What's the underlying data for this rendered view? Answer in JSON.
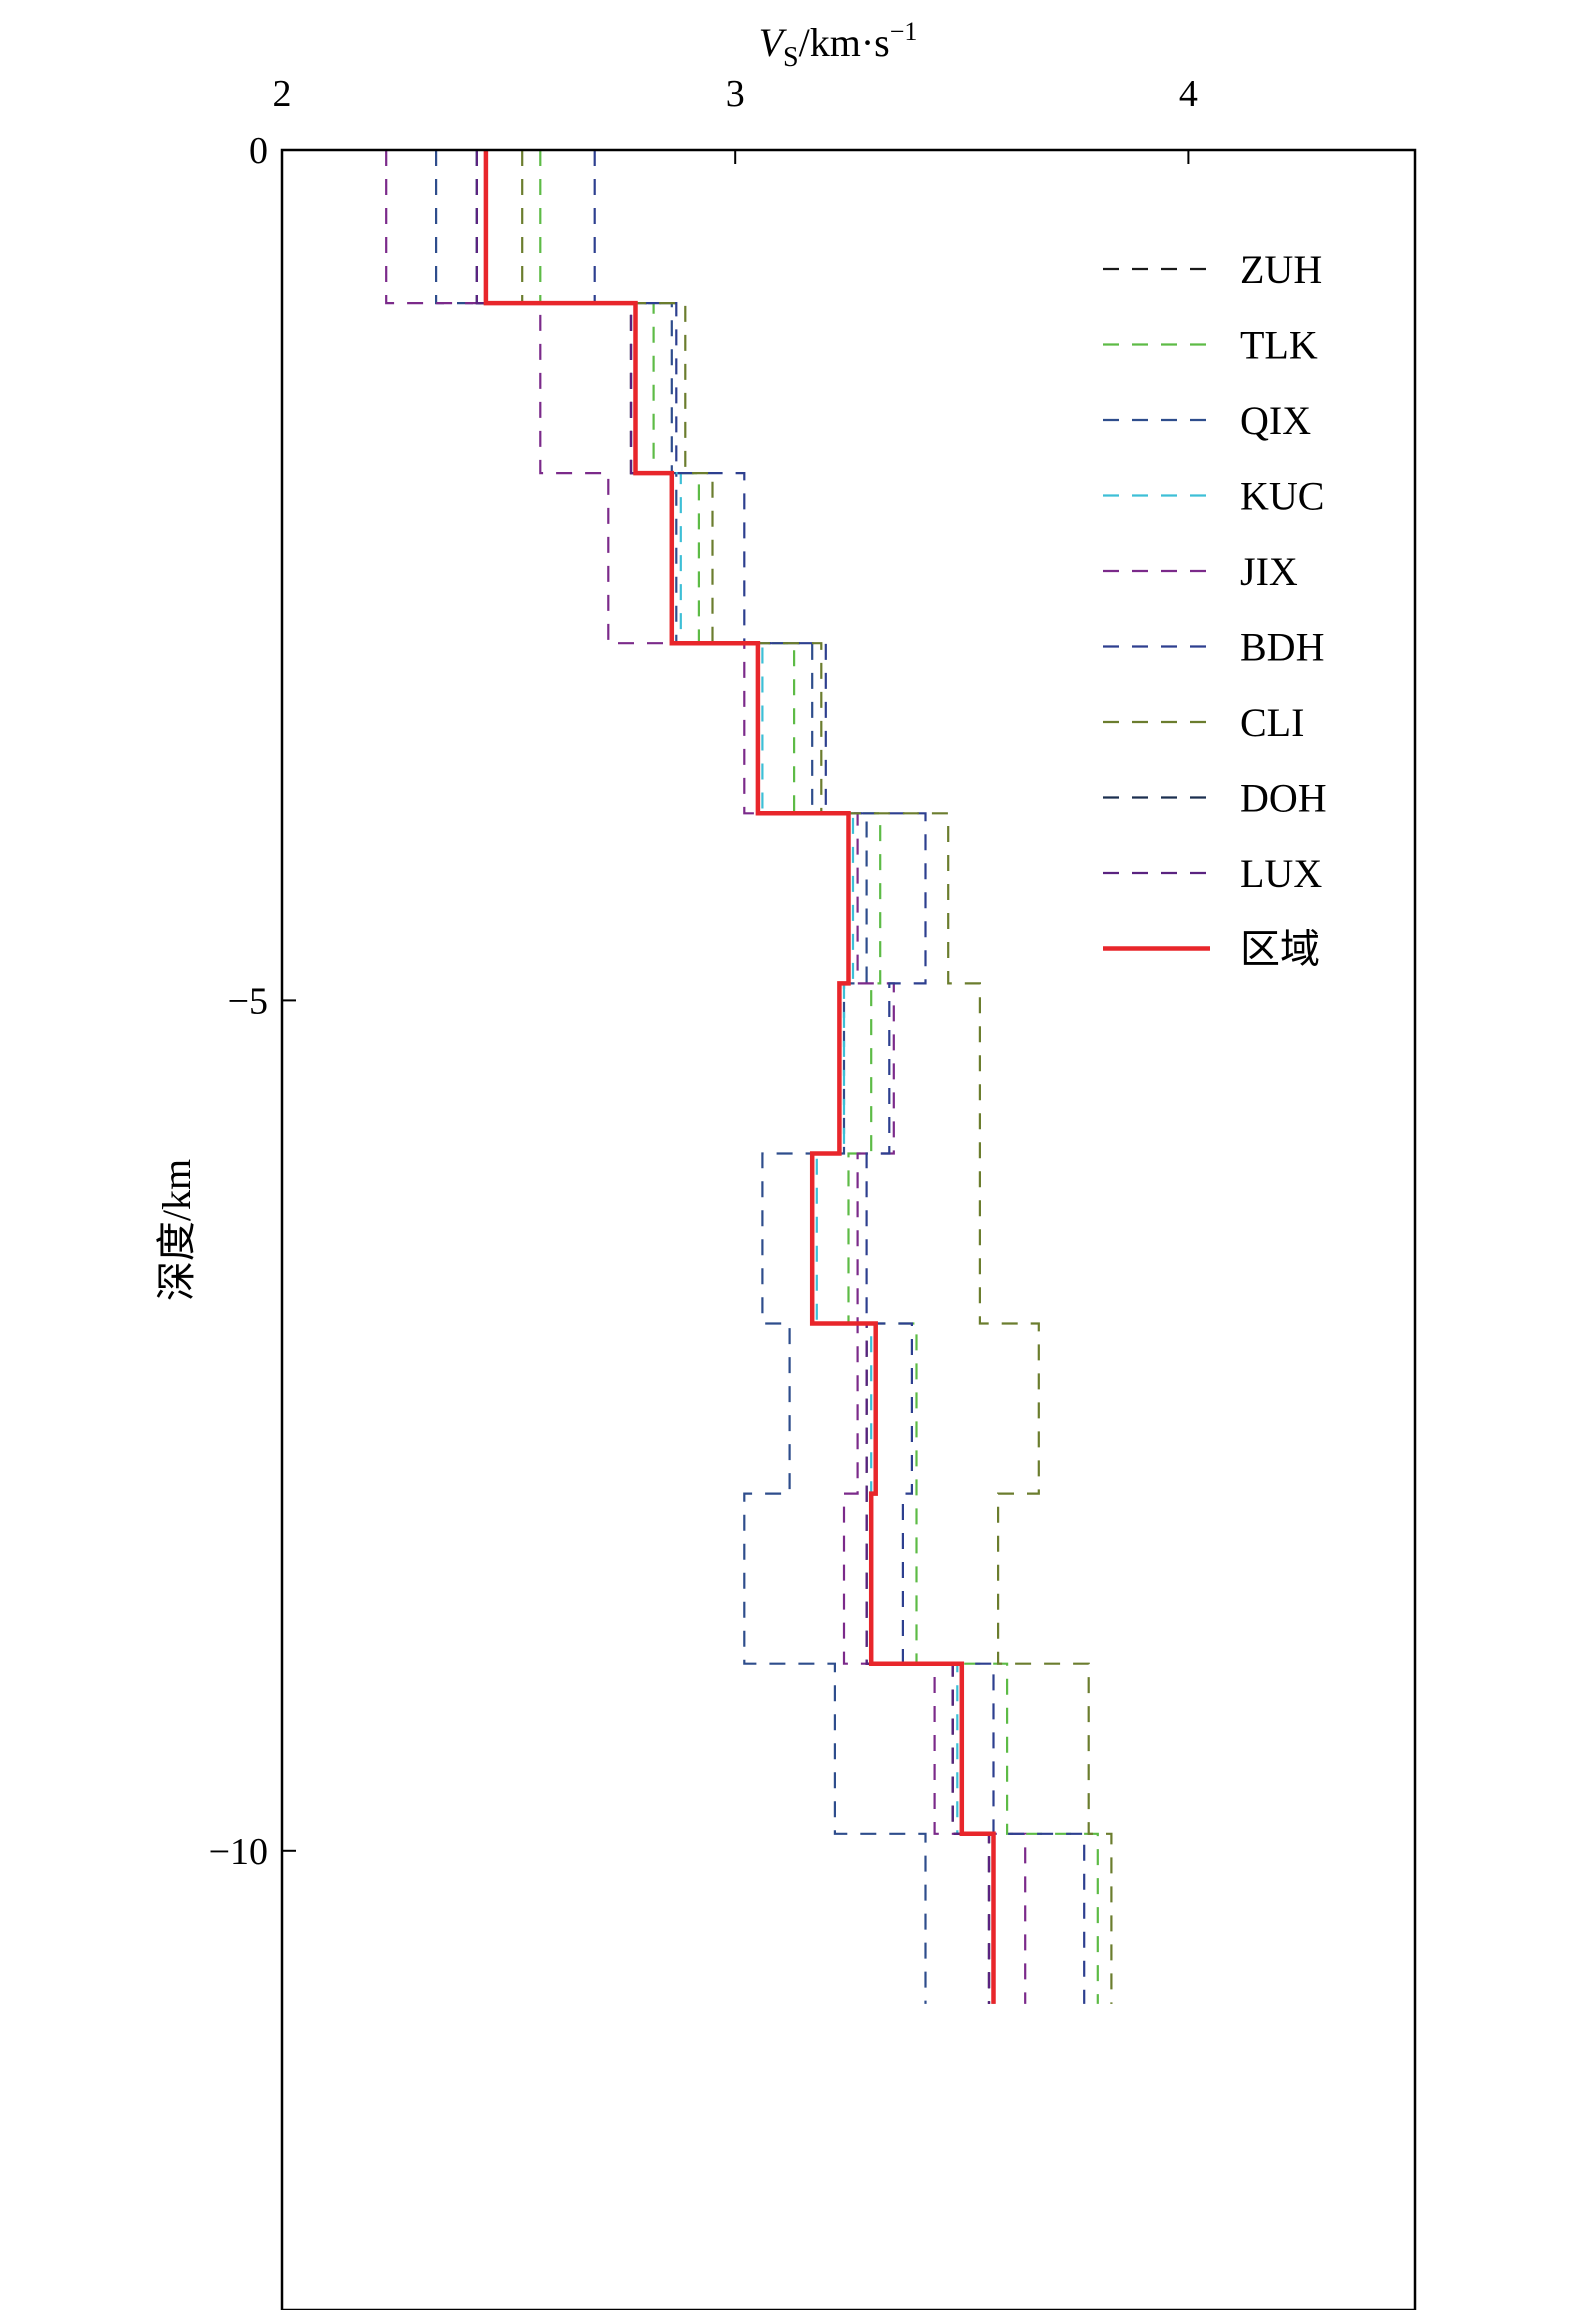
{
  "chart_data": {
    "type": "line",
    "xlabel": {
      "italic": "V",
      "sub": "S",
      "unit": "/km·s",
      "sup": "−1"
    },
    "ylabel": "深度/km",
    "xlim": [
      2,
      4.5
    ],
    "ylim": [
      0,
      -12.7
    ],
    "x_ticks": [
      2,
      3,
      4
    ],
    "x_tick_labels": [
      "2",
      "3",
      "4"
    ],
    "y_ticks": [
      0,
      -5,
      -10
    ],
    "y_tick_labels": [
      "0",
      "−5",
      "−10"
    ],
    "grid": false,
    "legend_position": "top-right",
    "layer_boundaries": [
      0,
      -0.9,
      -1.9,
      -2.9,
      -3.9,
      -4.9,
      -5.9,
      -6.9,
      -7.9,
      -8.9,
      -9.9,
      -10.9
    ],
    "series": [
      {
        "name": "ZUH",
        "style": "dashed",
        "color": "#1a1a1a",
        "values": [
          2.43,
          2.77,
          2.86,
          3.05,
          3.25,
          3.23,
          3.17,
          3.29,
          3.29,
          3.48,
          3.56
        ]
      },
      {
        "name": "TLK",
        "style": "dashed",
        "color": "#5dbb46",
        "values": [
          2.57,
          2.82,
          2.92,
          3.13,
          3.32,
          3.3,
          3.25,
          3.4,
          3.4,
          3.6,
          3.8
        ]
      },
      {
        "name": "QIX",
        "style": "dashed",
        "color": "#2e4d8c",
        "values": [
          2.34,
          2.86,
          2.87,
          3.17,
          3.29,
          3.24,
          3.06,
          3.12,
          3.02,
          3.22,
          3.42
        ]
      },
      {
        "name": "KUC",
        "style": "dashed",
        "color": "#3dbfd6",
        "values": [
          2.43,
          2.78,
          2.88,
          3.06,
          3.26,
          3.24,
          3.18,
          3.3,
          3.3,
          3.49,
          3.57
        ]
      },
      {
        "name": "JIX",
        "style": "dashed",
        "color": "#7b2a8a",
        "values": [
          2.23,
          2.57,
          2.72,
          3.02,
          3.27,
          3.35,
          3.27,
          3.27,
          3.24,
          3.44,
          3.64
        ]
      },
      {
        "name": "BDH",
        "style": "dashed",
        "color": "#2d3f8f",
        "values": [
          2.69,
          2.87,
          3.02,
          3.2,
          3.42,
          3.34,
          3.29,
          3.39,
          3.37,
          3.57,
          3.77
        ]
      },
      {
        "name": "CLI",
        "style": "dashed",
        "color": "#6b7d2e",
        "values": [
          2.53,
          2.89,
          2.95,
          3.19,
          3.47,
          3.54,
          3.54,
          3.67,
          3.58,
          3.78,
          3.83
        ]
      },
      {
        "name": "DOH",
        "style": "dashed",
        "color": "#1b2f4f",
        "values": [
          2.43,
          2.77,
          2.86,
          3.05,
          3.25,
          3.23,
          3.17,
          3.29,
          3.29,
          3.48,
          3.56
        ]
      },
      {
        "name": "LUX",
        "style": "dashed",
        "color": "#5a2380",
        "values": [
          2.43,
          2.77,
          2.86,
          3.05,
          3.25,
          3.23,
          3.17,
          3.29,
          3.29,
          3.48,
          3.56
        ]
      },
      {
        "name": "区域",
        "style": "solid",
        "color": "#e8262b",
        "values": [
          2.45,
          2.78,
          2.86,
          3.05,
          3.25,
          3.23,
          3.17,
          3.31,
          3.3,
          3.5,
          3.57
        ]
      }
    ]
  }
}
